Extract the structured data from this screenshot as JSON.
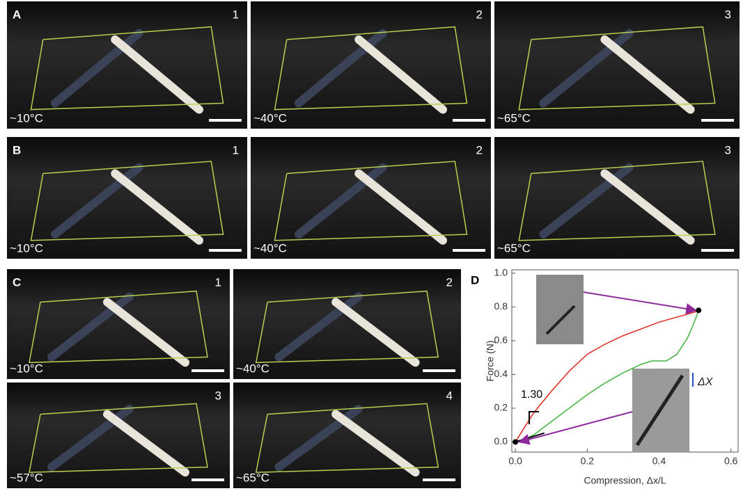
{
  "panels": [
    {
      "label": "A",
      "images": [
        {
          "number": "1",
          "temperature": "~10°C"
        },
        {
          "number": "2",
          "temperature": "~40°C"
        },
        {
          "number": "3",
          "temperature": "~65°C"
        }
      ]
    },
    {
      "label": "B",
      "images": [
        {
          "number": "1",
          "temperature": "~10°C"
        },
        {
          "number": "2",
          "temperature": "~40°C"
        },
        {
          "number": "3",
          "temperature": "~65°C"
        }
      ]
    },
    {
      "label": "C",
      "images": [
        {
          "number": "1",
          "temperature": "~10°C"
        },
        {
          "number": "2",
          "temperature": "~40°C"
        },
        {
          "number": "3",
          "temperature": "~57°C"
        },
        {
          "number": "4",
          "temperature": "~65°C"
        }
      ]
    }
  ],
  "chart_data": {
    "type": "line",
    "label": "D",
    "x_label": "Compression, Δx/L",
    "y_label": "Force (N)",
    "slope_label": "1.30",
    "displacement_label": "ΔX",
    "xlim": [
      -0.01,
      0.62
    ],
    "ylim": [
      -0.06,
      1.02
    ],
    "xticks": [
      {
        "value": 0,
        "label": "0.0"
      },
      0.2,
      0.4,
      0.6
    ],
    "yticks": [
      {
        "value": 0,
        "label": "0.0"
      },
      0.2,
      0.4,
      0.6,
      0.8,
      {
        "value": 1,
        "label": "1.0"
      }
    ],
    "series": [
      {
        "color": "#e0281e",
        "x": [
          0,
          0.05,
          0.1,
          0.15,
          0.2,
          0.25,
          0.3,
          0.35,
          0.4,
          0.45,
          0.5,
          0.51
        ],
        "values": [
          0,
          0.17,
          0.3,
          0.42,
          0.52,
          0.58,
          0.63,
          0.67,
          0.71,
          0.74,
          0.77,
          0.78
        ]
      },
      {
        "color": "#3cb43c",
        "x": [
          0.51,
          0.5,
          0.48,
          0.45,
          0.42,
          0.38,
          0.35,
          0.3,
          0.25,
          0.2,
          0.15,
          0.1,
          0.05,
          0.02,
          0
        ],
        "values": [
          0.78,
          0.72,
          0.62,
          0.52,
          0.48,
          0.48,
          0.46,
          0.41,
          0.35,
          0.28,
          0.2,
          0.12,
          0.04,
          0.01,
          0
        ]
      }
    ]
  }
}
